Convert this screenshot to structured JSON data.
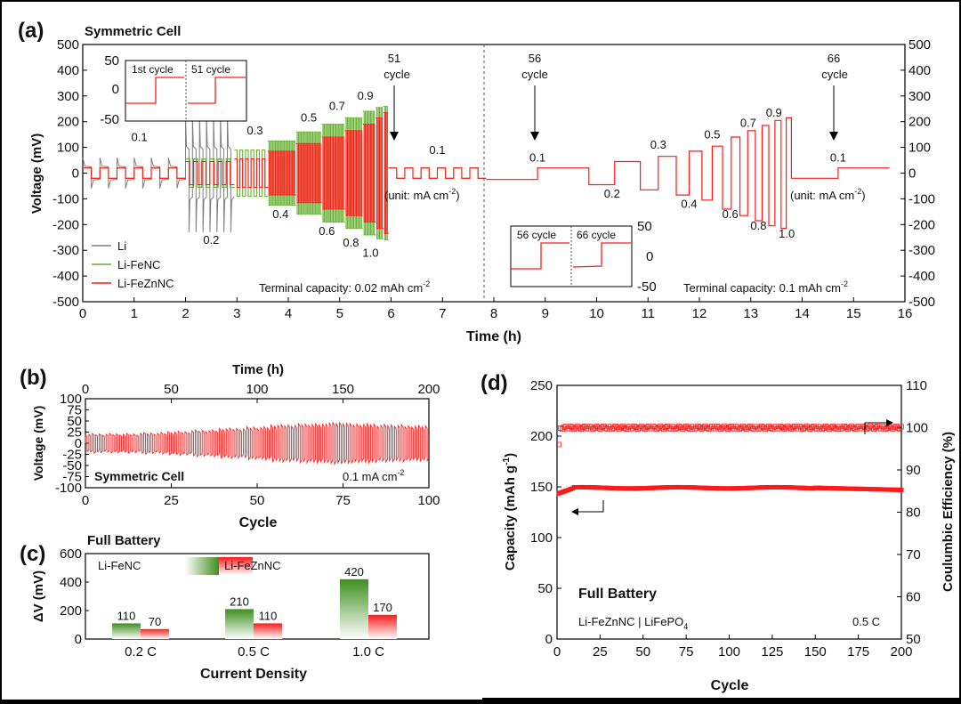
{
  "colors": {
    "li": "#7f7f7f",
    "fenc": "#66b032",
    "feznc": "#ff1a1a",
    "green_bar": "#4e9a2c",
    "red_bar": "#ff2a2a"
  },
  "chart_data": [
    {
      "id": "a",
      "type": "line",
      "panel_label": "(a)",
      "title": "Symmetric Cell",
      "xlabel": "Time (h)",
      "ylabel": "Voltage (mV)",
      "xlim": [
        0,
        16
      ],
      "ylim": [
        -500,
        500
      ],
      "xticks": [
        0,
        1,
        2,
        3,
        4,
        5,
        6,
        7,
        8,
        9,
        10,
        11,
        12,
        13,
        14,
        15,
        16
      ],
      "yticks": [
        500,
        400,
        300,
        200,
        100,
        0,
        -100,
        -200,
        -300,
        -400,
        -500
      ],
      "legend": [
        "Li",
        "Li-FeNC",
        "Li-FeZnNC"
      ],
      "legend_position": "bottom-left",
      "divider_x": 7.85,
      "left_stages": [
        {
          "t_start": 0.0,
          "t_end": 2.0,
          "current": 0.1,
          "fenc_mV": 20,
          "feznc_mV": 20,
          "li_mV": 60
        },
        {
          "t_start": 2.0,
          "t_end": 2.95,
          "current": 0.2,
          "fenc_mV": 55,
          "feznc_mV": 45,
          "li_mV": 230
        },
        {
          "t_start": 2.95,
          "t_end": 3.6,
          "current": 0.3,
          "fenc_mV": 90,
          "feznc_mV": 55
        },
        {
          "t_start": 3.6,
          "t_end": 4.15,
          "current": 0.4,
          "fenc_mV": 125,
          "feznc_mV": 85
        },
        {
          "t_start": 4.15,
          "t_end": 4.65,
          "current": 0.5,
          "fenc_mV": 160,
          "feznc_mV": 115
        },
        {
          "t_start": 4.65,
          "t_end": 5.1,
          "current": 0.6,
          "fenc_mV": 190,
          "feznc_mV": 140
        },
        {
          "t_start": 5.1,
          "t_end": 5.45,
          "current": 0.7,
          "fenc_mV": 215,
          "feznc_mV": 165
        },
        {
          "t_start": 5.45,
          "t_end": 5.7,
          "current": 0.8,
          "fenc_mV": 240,
          "feznc_mV": 190
        },
        {
          "t_start": 5.7,
          "t_end": 5.85,
          "current": 0.9,
          "fenc_mV": 255,
          "feznc_mV": 215
        },
        {
          "t_start": 5.85,
          "t_end": 5.95,
          "current": 1.0,
          "fenc_mV": 260,
          "feznc_mV": 235
        },
        {
          "t_start": 5.95,
          "t_end": 7.85,
          "current": 0.1,
          "fenc_mV": 20,
          "feznc_mV": 20
        }
      ],
      "right_steps": [
        {
          "t_start": 7.85,
          "t_end": 8.85,
          "current": 0.1,
          "mV": -25
        },
        {
          "t_start": 8.85,
          "t_end": 9.85,
          "current": 0.1,
          "mV": 20
        },
        {
          "t_start": 9.85,
          "t_end": 10.35,
          "current": 0.2,
          "mV": -45
        },
        {
          "t_start": 10.35,
          "t_end": 10.85,
          "current": 0.2,
          "mV": 45
        },
        {
          "t_start": 10.85,
          "t_end": 11.2,
          "current": 0.3,
          "mV": -65
        },
        {
          "t_start": 11.2,
          "t_end": 11.55,
          "current": 0.3,
          "mV": 65
        },
        {
          "t_start": 11.55,
          "t_end": 11.8,
          "current": 0.4,
          "mV": -85
        },
        {
          "t_start": 11.8,
          "t_end": 12.05,
          "current": 0.4,
          "mV": 85
        },
        {
          "t_start": 12.05,
          "t_end": 12.25,
          "current": 0.5,
          "mV": -105
        },
        {
          "t_start": 12.25,
          "t_end": 12.45,
          "current": 0.5,
          "mV": 105
        },
        {
          "t_start": 12.45,
          "t_end": 12.62,
          "current": 0.6,
          "mV": -140
        },
        {
          "t_start": 12.62,
          "t_end": 12.79,
          "current": 0.6,
          "mV": 140
        },
        {
          "t_start": 12.79,
          "t_end": 12.94,
          "current": 0.7,
          "mV": -165
        },
        {
          "t_start": 12.94,
          "t_end": 13.09,
          "current": 0.7,
          "mV": 165
        },
        {
          "t_start": 13.09,
          "t_end": 13.22,
          "current": 0.8,
          "mV": -185
        },
        {
          "t_start": 13.22,
          "t_end": 13.35,
          "current": 0.8,
          "mV": 185
        },
        {
          "t_start": 13.35,
          "t_end": 13.47,
          "current": 0.9,
          "mV": -205
        },
        {
          "t_start": 13.47,
          "t_end": 13.59,
          "current": 0.9,
          "mV": 205
        },
        {
          "t_start": 13.59,
          "t_end": 13.69,
          "current": 1.0,
          "mV": -215
        },
        {
          "t_start": 13.69,
          "t_end": 13.79,
          "current": 1.0,
          "mV": 215
        },
        {
          "t_start": 13.79,
          "t_end": 14.7,
          "current": 0.1,
          "mV": -20
        },
        {
          "t_start": 14.7,
          "t_end": 15.7,
          "current": 0.1,
          "mV": 20
        }
      ],
      "current_labels": [
        "0.1",
        "0.2",
        "0.3",
        "0.4",
        "0.5",
        "0.6",
        "0.7",
        "0.8",
        "0.9",
        "1.0"
      ],
      "annotations": {
        "c51": [
          "51",
          "cycle"
        ],
        "c56": [
          "56",
          "cycle"
        ],
        "c66": [
          "66",
          "cycle"
        ],
        "unit_left": "(unit: mA cm",
        "unit_right": "(unit: mA cm",
        "terminal_left": "Terminal capacity: 0.02 mAh cm",
        "terminal_right": "Terminal capacity: 0.1 mAh cm",
        "superscript": "-2",
        "unit_close": ")",
        "inset_left": {
          "label1": "1st cycle",
          "label2": "51 cycle",
          "yticks": [
            "50",
            "0",
            "-50"
          ]
        },
        "inset_right": {
          "label1": "56 cycle",
          "label2": "66 cycle",
          "yticks": [
            "50",
            "0",
            "-50"
          ]
        }
      }
    },
    {
      "id": "b",
      "type": "line",
      "panel_label": "(b)",
      "xlabel": "Cycle",
      "x2label": "Time (h)",
      "ylabel": "Voltage (mV)",
      "xlim": [
        0,
        100
      ],
      "x2lim": [
        0,
        200
      ],
      "ylim": [
        -100,
        100
      ],
      "xticks": [
        0,
        25,
        50,
        75,
        100
      ],
      "x2ticks": [
        0,
        50,
        100,
        150,
        200
      ],
      "yticks": [
        100,
        75,
        50,
        25,
        0,
        -25,
        -50,
        -75,
        -100
      ],
      "series": [
        {
          "name": "Li-FeZnNC",
          "amplitude_mV": [
            20,
            20,
            22,
            25,
            28,
            32,
            35,
            40,
            42,
            45,
            42,
            40,
            38
          ]
        }
      ],
      "note": "Symmetric Cell",
      "current": "0.1 mA cm",
      "superscript": "-2"
    },
    {
      "id": "c",
      "type": "bar",
      "panel_label": "(c)",
      "title": "Full Battery",
      "xlabel": "Current Density",
      "ylabel": "ΔV (mV)",
      "ylim": [
        0,
        600
      ],
      "yticks": [
        600,
        400,
        200,
        0
      ],
      "categories": [
        "0.2 C",
        "0.5 C",
        "1.0 C"
      ],
      "series": [
        {
          "name": "Li-FeNC",
          "values": [
            110,
            210,
            420
          ]
        },
        {
          "name": "Li-FeZnNC",
          "values": [
            70,
            110,
            170
          ]
        }
      ]
    },
    {
      "id": "d",
      "type": "scatter",
      "panel_label": "(d)",
      "xlabel": "Cycle",
      "ylabel": "Capacity (mAh g",
      "ylabel_sup": "-1",
      "ylabel_close": ")",
      "y2label": "Coulumbic Efficiency (%)",
      "xlim": [
        0,
        200
      ],
      "ylim": [
        0,
        250
      ],
      "y2lim": [
        50,
        110
      ],
      "xticks": [
        0,
        25,
        50,
        75,
        100,
        125,
        150,
        175,
        200
      ],
      "yticks": [
        250,
        200,
        150,
        100,
        50,
        0
      ],
      "y2ticks": [
        110,
        100,
        90,
        80,
        70,
        60,
        50
      ],
      "series": [
        {
          "name": "Capacity",
          "axis": "left",
          "values": {
            "start": 143,
            "plateau": 149,
            "end": 147
          }
        },
        {
          "name": "Coulumbic Efficiency",
          "axis": "right",
          "values": {
            "first": 96,
            "plateau": 100
          }
        }
      ],
      "title": "Full Battery",
      "cell": "Li-FeZnNC | LiFePO",
      "cell_sub": "4",
      "rate": "0.5 C"
    }
  ]
}
